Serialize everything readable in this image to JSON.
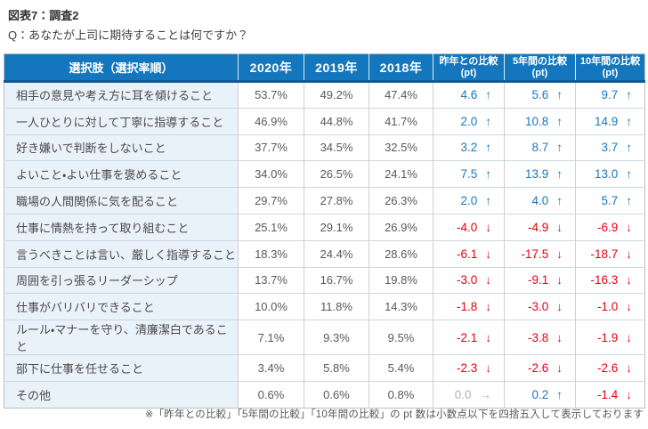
{
  "figure": {
    "title": "図表7：調査2",
    "question": "Q：あなたが上司に期待することは何ですか？"
  },
  "chart_data": {
    "type": "table",
    "title": "図表7：調査2",
    "subtitle": "Q：あなたが上司に期待することは何ですか？",
    "columns": [
      "選択肢（選択率順）",
      "2020年",
      "2019年",
      "2018年",
      "昨年との比較(pt)",
      "5年間の比較(pt)",
      "10年間の比較(pt)"
    ],
    "header": {
      "choices": "選択肢（選択率順）",
      "years": [
        "2020年",
        "2019年",
        "2018年"
      ],
      "compare": [
        {
          "l1": "昨年との比較",
          "l2": "(pt)"
        },
        {
          "l1": "5年間の比較",
          "l2": "(pt)"
        },
        {
          "l1": "10年間の比較",
          "l2": "(pt)"
        }
      ]
    },
    "rows": [
      {
        "label": "相手の意見や考え方に耳を傾けること",
        "values": [
          "53.7%",
          "49.2%",
          "47.4%"
        ],
        "compare": [
          {
            "pt": "4.6",
            "dir": "up"
          },
          {
            "pt": "5.6",
            "dir": "up"
          },
          {
            "pt": "9.7",
            "dir": "up"
          }
        ]
      },
      {
        "label": "一人ひとりに対して丁寧に指導すること",
        "values": [
          "46.9%",
          "44.8%",
          "41.7%"
        ],
        "compare": [
          {
            "pt": "2.0",
            "dir": "up"
          },
          {
            "pt": "10.8",
            "dir": "up"
          },
          {
            "pt": "14.9",
            "dir": "up"
          }
        ]
      },
      {
        "label": "好き嫌いで判断をしないこと",
        "values": [
          "37.7%",
          "34.5%",
          "32.5%"
        ],
        "compare": [
          {
            "pt": "3.2",
            "dir": "up"
          },
          {
            "pt": "8.7",
            "dir": "up"
          },
          {
            "pt": "3.7",
            "dir": "up"
          }
        ]
      },
      {
        "label": "よいこと・よい仕事を褒めること",
        "values": [
          "34.0%",
          "26.5%",
          "24.1%"
        ],
        "compare": [
          {
            "pt": "7.5",
            "dir": "up"
          },
          {
            "pt": "13.9",
            "dir": "up"
          },
          {
            "pt": "13.0",
            "dir": "up"
          }
        ]
      },
      {
        "label": "職場の人間関係に気を配ること",
        "values": [
          "29.7%",
          "27.8%",
          "26.3%"
        ],
        "compare": [
          {
            "pt": "2.0",
            "dir": "up"
          },
          {
            "pt": "4.0",
            "dir": "up"
          },
          {
            "pt": "5.7",
            "dir": "up"
          }
        ]
      },
      {
        "label": "仕事に情熱を持って取り組むこと",
        "values": [
          "25.1%",
          "29.1%",
          "26.9%"
        ],
        "compare": [
          {
            "pt": "-4.0",
            "dir": "down"
          },
          {
            "pt": "-4.9",
            "dir": "down"
          },
          {
            "pt": "-6.9",
            "dir": "down"
          }
        ]
      },
      {
        "label": "言うべきことは言い、厳しく指導すること",
        "values": [
          "18.3%",
          "24.4%",
          "28.6%"
        ],
        "compare": [
          {
            "pt": "-6.1",
            "dir": "down"
          },
          {
            "pt": "-17.5",
            "dir": "down"
          },
          {
            "pt": "-18.7",
            "dir": "down"
          }
        ]
      },
      {
        "label": "周囲を引っ張るリーダーシップ",
        "values": [
          "13.7%",
          "16.7%",
          "19.8%"
        ],
        "compare": [
          {
            "pt": "-3.0",
            "dir": "down"
          },
          {
            "pt": "-9.1",
            "dir": "down"
          },
          {
            "pt": "-16.3",
            "dir": "down"
          }
        ]
      },
      {
        "label": "仕事がバリバリできること",
        "values": [
          "10.0%",
          "11.8%",
          "14.3%"
        ],
        "compare": [
          {
            "pt": "-1.8",
            "dir": "down"
          },
          {
            "pt": "-3.0",
            "dir": "down"
          },
          {
            "pt": "-1.0",
            "dir": "down"
          }
        ]
      },
      {
        "label": "ルール・マナーを守り、清廉潔白であること",
        "values": [
          "7.1%",
          "9.3%",
          "9.5%"
        ],
        "compare": [
          {
            "pt": "-2.1",
            "dir": "down"
          },
          {
            "pt": "-3.8",
            "dir": "down"
          },
          {
            "pt": "-1.9",
            "dir": "down"
          }
        ]
      },
      {
        "label": "部下に仕事を任せること",
        "values": [
          "3.4%",
          "5.8%",
          "5.4%"
        ],
        "compare": [
          {
            "pt": "-2.3",
            "dir": "down"
          },
          {
            "pt": "-2.6",
            "dir": "down"
          },
          {
            "pt": "-2.6",
            "dir": "down"
          }
        ]
      },
      {
        "label": "その他",
        "values": [
          "0.6%",
          "0.6%",
          "0.8%"
        ],
        "compare": [
          {
            "pt": "0.0",
            "dir": "flat"
          },
          {
            "pt": "0.2",
            "dir": "up"
          },
          {
            "pt": "-1.4",
            "dir": "down"
          }
        ]
      }
    ]
  },
  "arrows": {
    "up": "↑",
    "down": "↓",
    "flat": "→"
  },
  "footnote": "※「昨年との比較」「5年間の比較」「10年間の比較」の pt 数は小数点以下を四捨五入して表示しております",
  "colors": {
    "header_bg": "#1477bd",
    "header_edge": "#0c5a9c",
    "up": "#1878be",
    "down": "#e60012",
    "flat": "#b2b2b2",
    "label_bg": "#e9f1f9"
  }
}
